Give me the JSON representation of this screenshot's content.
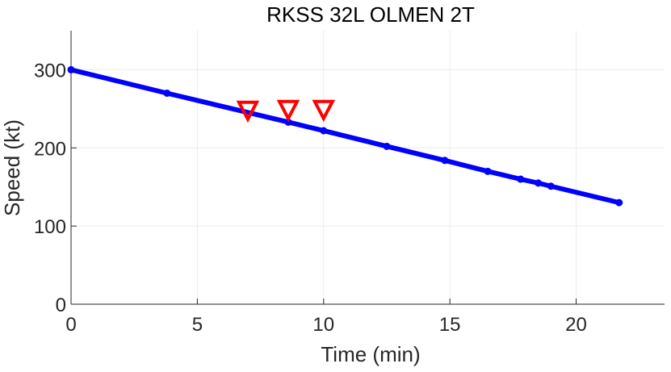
{
  "chart_data": {
    "type": "line",
    "title": "RKSS 32L OLMEN 2T",
    "xlabel": "Time (min)",
    "ylabel": "Speed (kt)",
    "xlim": [
      0,
      23.5
    ],
    "ylim": [
      0,
      350
    ],
    "xticks": [
      0,
      5,
      10,
      15,
      20
    ],
    "yticks": [
      0,
      100,
      200,
      300
    ],
    "grid": true,
    "colors": {
      "line": "#0000ff",
      "marker": "#ff0000"
    },
    "series": [
      {
        "x": [
          0,
          3.8,
          8.6,
          10.0,
          12.5,
          14.8,
          16.5,
          17.8,
          18.5,
          19.0,
          21.7
        ],
        "y": [
          300,
          270,
          233,
          222,
          202,
          184,
          170,
          160,
          155,
          151,
          130
        ]
      }
    ],
    "markers": [
      {
        "x": 7.0,
        "y": 247,
        "symbol": "triangle-down"
      },
      {
        "x": 8.6,
        "y": 248,
        "symbol": "triangle-down"
      },
      {
        "x": 10.0,
        "y": 248,
        "symbol": "triangle-down"
      }
    ]
  }
}
